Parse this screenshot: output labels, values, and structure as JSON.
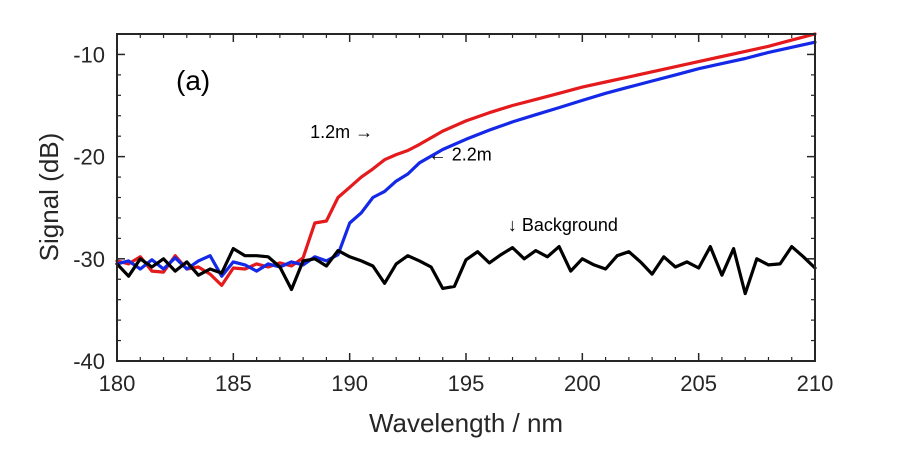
{
  "chart_data": {
    "type": "line",
    "panel_label": "(a)",
    "xlabel": "Wavelength / nm",
    "ylabel": "Signal (dB)",
    "xlim": [
      180,
      210
    ],
    "ylim": [
      -40,
      -8
    ],
    "x_ticks": [
      180,
      185,
      190,
      195,
      200,
      205,
      210
    ],
    "x_tick_labels": [
      "180",
      "185",
      "190",
      "195",
      "200",
      "205",
      "210"
    ],
    "y_ticks": [
      -40,
      -30,
      -20,
      -10
    ],
    "y_tick_labels": [
      "-40",
      "-30",
      "-20",
      "-10"
    ],
    "series": [
      {
        "name": "1.2m",
        "color": "#e41a1c",
        "x": [
          180,
          180.5,
          181,
          181.5,
          182,
          182.5,
          183,
          183.5,
          184,
          184.5,
          185,
          185.5,
          186,
          186.5,
          187,
          187.5,
          188,
          188.5,
          189,
          189.5,
          190,
          190.5,
          191,
          191.5,
          192,
          192.5,
          193,
          194,
          195,
          196,
          197,
          198,
          199,
          200,
          201,
          202,
          203,
          204,
          205,
          206,
          207,
          208,
          209,
          210
        ],
        "y": [
          -30.2,
          -30.5,
          -29.8,
          -31.2,
          -31.3,
          -29.7,
          -31.0,
          -30.8,
          -31.5,
          -32.6,
          -30.9,
          -31.0,
          -30.5,
          -30.8,
          -30.4,
          -30.7,
          -29.9,
          -26.5,
          -26.3,
          -24.0,
          -23.0,
          -22.0,
          -21.2,
          -20.3,
          -19.8,
          -19.4,
          -18.8,
          -17.5,
          -16.5,
          -15.7,
          -15.0,
          -14.4,
          -13.8,
          -13.2,
          -12.7,
          -12.2,
          -11.7,
          -11.2,
          -10.7,
          -10.2,
          -9.7,
          -9.2,
          -8.6,
          -8.0
        ]
      },
      {
        "name": "2.2m",
        "color": "#1428e8",
        "x": [
          180,
          180.5,
          181,
          181.5,
          182,
          182.5,
          183,
          183.5,
          184,
          184.5,
          185,
          185.5,
          186,
          186.5,
          187,
          187.5,
          188,
          188.5,
          189,
          189.5,
          190,
          190.5,
          191,
          191.5,
          192,
          192.5,
          193,
          194,
          195,
          196,
          197,
          198,
          199,
          200,
          201,
          202,
          203,
          204,
          205,
          206,
          207,
          208,
          209,
          210
        ],
        "y": [
          -30.5,
          -30.2,
          -31.0,
          -30.1,
          -31.0,
          -29.9,
          -31.0,
          -30.2,
          -29.7,
          -31.7,
          -30.3,
          -30.6,
          -31.2,
          -30.5,
          -30.8,
          -30.3,
          -30.6,
          -29.8,
          -30.2,
          -29.6,
          -26.5,
          -25.5,
          -24.0,
          -23.4,
          -22.4,
          -21.7,
          -20.6,
          -19.3,
          -18.3,
          -17.4,
          -16.6,
          -15.9,
          -15.2,
          -14.5,
          -13.8,
          -13.2,
          -12.6,
          -12.0,
          -11.4,
          -10.9,
          -10.4,
          -9.8,
          -9.3,
          -8.8
        ]
      },
      {
        "name": "Background",
        "color": "#000000",
        "x": [
          180,
          180.5,
          181,
          181.5,
          182,
          182.5,
          183,
          183.5,
          184,
          184.5,
          185,
          185.5,
          186,
          186.5,
          187,
          187.5,
          188,
          188.5,
          189,
          189.5,
          190,
          190.5,
          191,
          191.5,
          192,
          192.5,
          193,
          193.5,
          194,
          194.5,
          195,
          195.5,
          196,
          196.5,
          197,
          197.5,
          198,
          198.5,
          199,
          199.5,
          200,
          200.5,
          201,
          201.5,
          202,
          202.5,
          203,
          203.5,
          204,
          204.5,
          205,
          205.5,
          206,
          206.5,
          207,
          207.5,
          208,
          208.5,
          209,
          209.5,
          210
        ],
        "y": [
          -30.5,
          -31.7,
          -30.0,
          -30.8,
          -30.0,
          -31.2,
          -30.3,
          -31.6,
          -31.0,
          -31.4,
          -29.0,
          -29.7,
          -29.7,
          -29.8,
          -30.8,
          -33.0,
          -30.2,
          -30.0,
          -30.7,
          -29.2,
          -29.8,
          -30.2,
          -30.7,
          -32.4,
          -30.5,
          -29.7,
          -30.2,
          -30.8,
          -32.9,
          -32.7,
          -30.1,
          -29.3,
          -30.4,
          -29.6,
          -28.9,
          -30.0,
          -29.2,
          -29.8,
          -28.8,
          -31.2,
          -30.0,
          -30.6,
          -31.0,
          -29.7,
          -29.3,
          -30.3,
          -31.5,
          -29.8,
          -30.8,
          -30.3,
          -30.9,
          -28.8,
          -31.6,
          -29.0,
          -33.4,
          -30.0,
          -30.6,
          -30.5,
          -28.8,
          -29.8,
          -30.9
        ]
      }
    ],
    "annotations": [
      {
        "text": "1.2m →",
        "x": 188.3,
        "y": -18.2
      },
      {
        "text": "← 2.2m",
        "x": 193.4,
        "y": -20.4
      },
      {
        "text": "↓ Background",
        "x": 196.8,
        "y": -27.3
      }
    ]
  }
}
